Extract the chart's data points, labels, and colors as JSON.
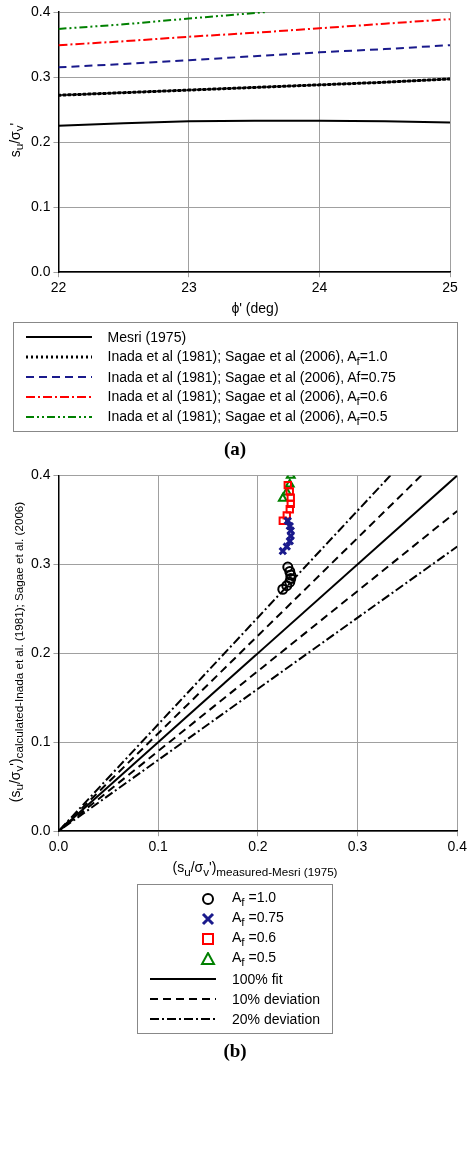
{
  "chart_data": [
    {
      "type": "line",
      "xlabel": "ϕ' (deg)",
      "ylabel": "s$_{u}$/σ$_{v}$'",
      "x": [
        22,
        22.5,
        23,
        23.5,
        24,
        24.5,
        25
      ],
      "xlim": [
        22,
        25
      ],
      "xticks": [
        22,
        23,
        24,
        25
      ],
      "ylim": [
        0,
        0.4
      ],
      "yticks": [
        {
          "value": 0,
          "label": "0.0"
        },
        0.1,
        0.2,
        0.3,
        0.4
      ],
      "grid": true,
      "legend": "bottom",
      "marker": "none",
      "series": [
        {
          "name": "Mesri (1975)",
          "color": "#000000",
          "line_style": "solid",
          "values": [
            0.225,
            0.229,
            0.232,
            0.233,
            0.233,
            0.232,
            0.23
          ]
        },
        {
          "name": "Inada et al (1981); Sagae et al (2006), A$_{f}$=1.0",
          "color": "#000000",
          "line_style": "dotted",
          "values": [
            0.272,
            0.276,
            0.28,
            0.284,
            0.288,
            0.292,
            0.297
          ]
        },
        {
          "name": "Inada et al (1981); Sagae et al (2006), Af=0.75",
          "color": "#1a1a8c",
          "line_style": "dashed",
          "values": [
            0.315,
            0.32,
            0.326,
            0.332,
            0.338,
            0.343,
            0.349
          ]
        },
        {
          "name": "Inada et al (1981); Sagae et al (2006), A$_{f}$=0.6",
          "color": "#ff0000",
          "line_style": "dashdot",
          "values": [
            0.349,
            0.355,
            0.362,
            0.368,
            0.375,
            0.382,
            0.389
          ]
        },
        {
          "name": "Inada et al (1981); Sagae et al (2006), A$_{f}$=0.5",
          "color": "#008000",
          "line_style": "dashdotdot",
          "x": [
            22,
            22.5,
            23,
            23.6
          ],
          "values": [
            0.374,
            0.381,
            0.39,
            0.4
          ]
        }
      ],
      "annotations": [
        "(a)"
      ]
    },
    {
      "type": "scatter",
      "xlabel": "(s$_{u}$/σ$_{v}$')$_{measured-Mesri (1975)}$",
      "ylabel": "(s$_{u}$/σ$_{v}$')$_{calculated-Inada et al. (1981); Sagae et al. (2006)}$",
      "x": [
        0.225,
        0.229,
        0.232,
        0.233,
        0.233,
        0.232,
        0.23
      ],
      "xlim": [
        0,
        0.4
      ],
      "xticks": [
        {
          "value": 0,
          "label": "0.0"
        },
        0.1,
        0.2,
        0.3,
        0.4
      ],
      "ylim": [
        0,
        0.4
      ],
      "yticks": [
        {
          "value": 0,
          "label": "0.0"
        },
        0.1,
        0.2,
        0.3,
        0.4
      ],
      "grid": true,
      "legend": "bottom",
      "series": [
        {
          "name": "A$_{f}$ =1.0",
          "color": "#000000",
          "marker": "circle",
          "values": [
            0.272,
            0.276,
            0.28,
            0.284,
            0.288,
            0.292,
            0.297
          ]
        },
        {
          "name": "A$_{f}$ =0.75",
          "color": "#1a1a8c",
          "marker": "cross",
          "values": [
            0.315,
            0.32,
            0.326,
            0.332,
            0.338,
            0.343,
            0.349
          ]
        },
        {
          "name": "A$_{f}$ =0.6",
          "color": "#ff0000",
          "marker": "square",
          "values": [
            0.349,
            0.355,
            0.362,
            0.368,
            0.375,
            0.382,
            0.389
          ]
        },
        {
          "name": "A$_{f}$ =0.5",
          "color": "#008000",
          "marker": "triangle",
          "x": [
            0.225,
            0.229,
            0.232,
            0.233
          ],
          "values": [
            0.374,
            0.381,
            0.39,
            0.4
          ]
        },
        {
          "name": "100% fit",
          "type": "line",
          "color": "#000000",
          "line_style": "solid",
          "marker": "none",
          "x": [
            0,
            0.4
          ],
          "values": [
            0,
            0.4
          ]
        },
        {
          "name": "10% deviation",
          "type": "line",
          "color": "#000000",
          "line_style": "dashed",
          "marker": "none",
          "x": [
            0.364,
            0,
            0.4
          ],
          "values": [
            0.4,
            0,
            0.36
          ]
        },
        {
          "name": "20% deviation",
          "type": "line",
          "color": "#000000",
          "line_style": "dashdot",
          "marker": "none",
          "x": [
            0.333,
            0,
            0.4
          ],
          "values": [
            0.4,
            0,
            0.32
          ]
        }
      ],
      "annotations": [
        "(b)"
      ]
    }
  ]
}
